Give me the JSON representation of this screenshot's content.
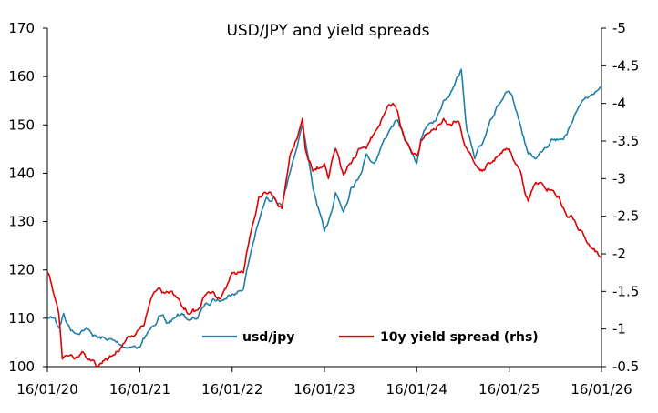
{
  "chart_data": {
    "type": "line",
    "title": "USD/JPY and yield spreads",
    "x_ticks": [
      "16/01/20",
      "16/01/21",
      "16/01/22",
      "16/01/23",
      "16/01/24",
      "16/01/25",
      "16/01/26"
    ],
    "y_left": {
      "min": 100,
      "max": 170,
      "ticks": [
        "100",
        "110",
        "120",
        "130",
        "140",
        "150",
        "160",
        "170"
      ]
    },
    "y_right": {
      "min": -0.5,
      "max": -5,
      "inverted": true,
      "ticks": [
        "-0.5",
        "-1",
        "-1.5",
        "-2",
        "-2.5",
        "-3",
        "-3.5",
        "-4",
        "-4.5",
        "-5"
      ]
    },
    "legend_position": "bottom-center",
    "grid": false,
    "series": [
      {
        "name": "usd/jpy",
        "axis": "left",
        "color": "#1F7FA8",
        "points": [
          [
            "16/01/20",
            110
          ],
          [
            "15/02/20",
            110
          ],
          [
            "01/03/20",
            108
          ],
          [
            "20/03/20",
            111
          ],
          [
            "01/04/20",
            109
          ],
          [
            "01/05/20",
            107
          ],
          [
            "01/06/20",
            107.5
          ],
          [
            "01/07/20",
            107.5
          ],
          [
            "01/08/20",
            106
          ],
          [
            "01/09/20",
            105.8
          ],
          [
            "01/10/20",
            105.5
          ],
          [
            "01/11/20",
            104.5
          ],
          [
            "01/12/20",
            104
          ],
          [
            "16/01/21",
            104
          ],
          [
            "01/03/21",
            108
          ],
          [
            "01/04/21",
            110.5
          ],
          [
            "01/05/21",
            109
          ],
          [
            "01/06/21",
            110
          ],
          [
            "01/07/21",
            111
          ],
          [
            "01/08/21",
            109.5
          ],
          [
            "01/09/21",
            110
          ],
          [
            "01/10/21",
            113
          ],
          [
            "01/11/21",
            114
          ],
          [
            "01/12/21",
            113.5
          ],
          [
            "16/01/22",
            115
          ],
          [
            "01/03/22",
            116
          ],
          [
            "01/04/22",
            124
          ],
          [
            "01/05/22",
            130
          ],
          [
            "01/06/22",
            135
          ],
          [
            "01/07/22",
            135
          ],
          [
            "01/08/22",
            133
          ],
          [
            "01/09/22",
            140
          ],
          [
            "21/10/22",
            150
          ],
          [
            "01/11/22",
            147
          ],
          [
            "01/12/22",
            137
          ],
          [
            "16/01/23",
            128
          ],
          [
            "01/02/23",
            130
          ],
          [
            "01/03/23",
            136
          ],
          [
            "01/04/23",
            132
          ],
          [
            "01/05/23",
            137
          ],
          [
            "01/06/23",
            139
          ],
          [
            "01/07/23",
            144
          ],
          [
            "01/08/23",
            142
          ],
          [
            "01/09/23",
            146
          ],
          [
            "01/10/23",
            149
          ],
          [
            "01/11/23",
            151
          ],
          [
            "01/12/23",
            147
          ],
          [
            "16/01/24",
            142
          ],
          [
            "01/02/24",
            147
          ],
          [
            "01/03/24",
            150
          ],
          [
            "01/04/24",
            151
          ],
          [
            "01/05/24",
            155
          ],
          [
            "01/06/24",
            157
          ],
          [
            "10/07/24",
            161.5
          ],
          [
            "01/08/24",
            149
          ],
          [
            "01/09/24",
            143
          ],
          [
            "01/10/24",
            146
          ],
          [
            "01/11/24",
            151
          ],
          [
            "01/12/24",
            154
          ],
          [
            "16/01/25",
            157
          ],
          [
            "01/02/25",
            155
          ],
          [
            "01/03/25",
            150
          ],
          [
            "01/04/25",
            144
          ],
          [
            "01/05/25",
            143
          ],
          [
            "01/06/25",
            145
          ],
          [
            "01/07/25",
            147
          ],
          [
            "01/08/25",
            147
          ],
          [
            "01/09/25",
            148
          ],
          [
            "01/10/25",
            152
          ],
          [
            "01/11/25",
            155
          ],
          [
            "01/12/25",
            156
          ],
          [
            "16/01/26",
            158
          ]
        ]
      },
      {
        "name": "10y yield spread (rhs)",
        "axis": "right",
        "color": "#E00000",
        "points": [
          [
            "16/01/20",
            -1.75
          ],
          [
            "01/02/20",
            -1.6
          ],
          [
            "01/03/20",
            -1.2
          ],
          [
            "15/03/20",
            -0.6
          ],
          [
            "01/04/20",
            -0.65
          ],
          [
            "01/05/20",
            -0.6
          ],
          [
            "01/06/20",
            -0.7
          ],
          [
            "01/07/20",
            -0.6
          ],
          [
            "01/08/20",
            -0.5
          ],
          [
            "01/09/20",
            -0.6
          ],
          [
            "01/10/20",
            -0.65
          ],
          [
            "01/11/20",
            -0.75
          ],
          [
            "01/12/20",
            -0.9
          ],
          [
            "16/01/21",
            -1.0
          ],
          [
            "01/02/21",
            -1.05
          ],
          [
            "01/03/21",
            -1.4
          ],
          [
            "01/04/21",
            -1.55
          ],
          [
            "01/05/21",
            -1.5
          ],
          [
            "01/06/21",
            -1.45
          ],
          [
            "01/07/21",
            -1.3
          ],
          [
            "01/08/21",
            -1.2
          ],
          [
            "01/09/21",
            -1.25
          ],
          [
            "01/10/21",
            -1.45
          ],
          [
            "01/11/21",
            -1.5
          ],
          [
            "01/12/21",
            -1.4
          ],
          [
            "16/01/22",
            -1.75
          ],
          [
            "01/03/22",
            -1.75
          ],
          [
            "01/04/22",
            -2.3
          ],
          [
            "01/05/22",
            -2.75
          ],
          [
            "01/06/22",
            -2.8
          ],
          [
            "01/07/22",
            -2.75
          ],
          [
            "01/08/22",
            -2.6
          ],
          [
            "01/09/22",
            -3.3
          ],
          [
            "21/10/22",
            -3.8
          ],
          [
            "01/11/22",
            -3.4
          ],
          [
            "01/12/22",
            -3.1
          ],
          [
            "16/01/23",
            -3.2
          ],
          [
            "01/02/23",
            -3.0
          ],
          [
            "01/03/23",
            -3.4
          ],
          [
            "01/04/23",
            -3.05
          ],
          [
            "01/05/23",
            -3.2
          ],
          [
            "01/06/23",
            -3.4
          ],
          [
            "01/07/23",
            -3.4
          ],
          [
            "01/08/23",
            -3.6
          ],
          [
            "01/09/23",
            -3.8
          ],
          [
            "15/10/23",
            -4.0
          ],
          [
            "01/11/23",
            -3.9
          ],
          [
            "01/12/23",
            -3.5
          ],
          [
            "16/01/24",
            -3.3
          ],
          [
            "01/02/24",
            -3.5
          ],
          [
            "01/03/24",
            -3.6
          ],
          [
            "01/04/24",
            -3.65
          ],
          [
            "01/05/24",
            -3.8
          ],
          [
            "01/06/24",
            -3.7
          ],
          [
            "01/07/24",
            -3.75
          ],
          [
            "01/08/24",
            -3.4
          ],
          [
            "01/09/24",
            -3.2
          ],
          [
            "01/10/24",
            -3.1
          ],
          [
            "01/11/24",
            -3.2
          ],
          [
            "01/12/24",
            -3.3
          ],
          [
            "16/01/25",
            -3.4
          ],
          [
            "01/02/25",
            -3.25
          ],
          [
            "01/03/25",
            -3.1
          ],
          [
            "01/04/25",
            -2.7
          ],
          [
            "01/05/25",
            -2.95
          ],
          [
            "01/06/25",
            -2.9
          ],
          [
            "01/07/25",
            -2.85
          ],
          [
            "01/08/25",
            -2.75
          ],
          [
            "01/09/25",
            -2.5
          ],
          [
            "01/10/25",
            -2.45
          ],
          [
            "01/11/25",
            -2.3
          ],
          [
            "01/12/25",
            -2.1
          ],
          [
            "16/01/26",
            -1.95
          ]
        ]
      }
    ]
  }
}
